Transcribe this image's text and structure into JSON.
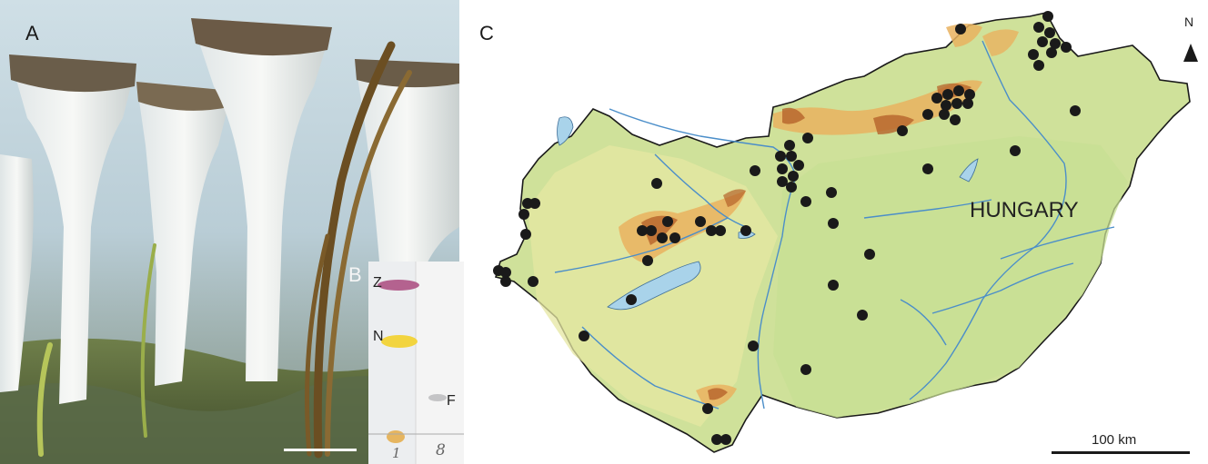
{
  "figure": {
    "panel_a": {
      "label": "A"
    },
    "panel_b": {
      "label": "B",
      "spot_labels": [
        "Z",
        "N",
        "F"
      ],
      "lane_marks": [
        "1",
        "8"
      ]
    },
    "panel_c": {
      "label": "C",
      "country": "HUNGARY",
      "north": "N",
      "scale_bar": "100 km"
    }
  },
  "colors": {
    "lowland": "#d9e7a0",
    "highland": "#e9a857",
    "peak": "#b5632a",
    "water": "#a9d3ea",
    "river": "#4b8ec9",
    "dot": "#1a1a1a"
  }
}
